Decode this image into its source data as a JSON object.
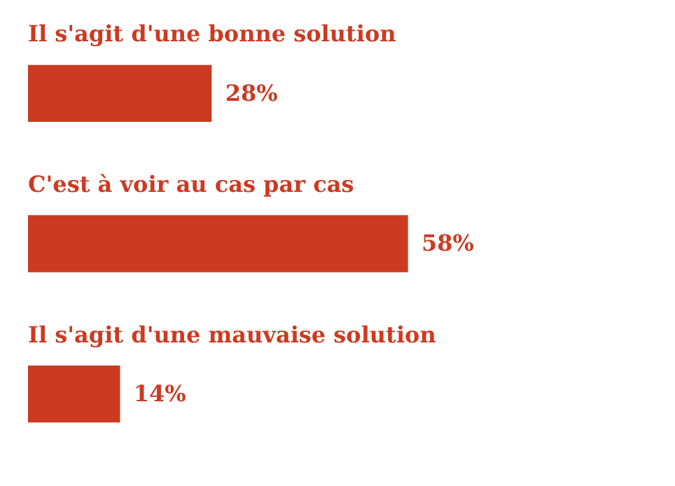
{
  "chart_data": {
    "type": "bar",
    "orientation": "horizontal",
    "categories": [
      "Il s'agit d'une bonne solution",
      "C'est à voir au cas par cas",
      "Il s'agit d'une mauvaise solution"
    ],
    "values": [
      28,
      58,
      14
    ],
    "value_labels": [
      "28%",
      "58%",
      "14%"
    ],
    "color": "#cc3a22"
  }
}
